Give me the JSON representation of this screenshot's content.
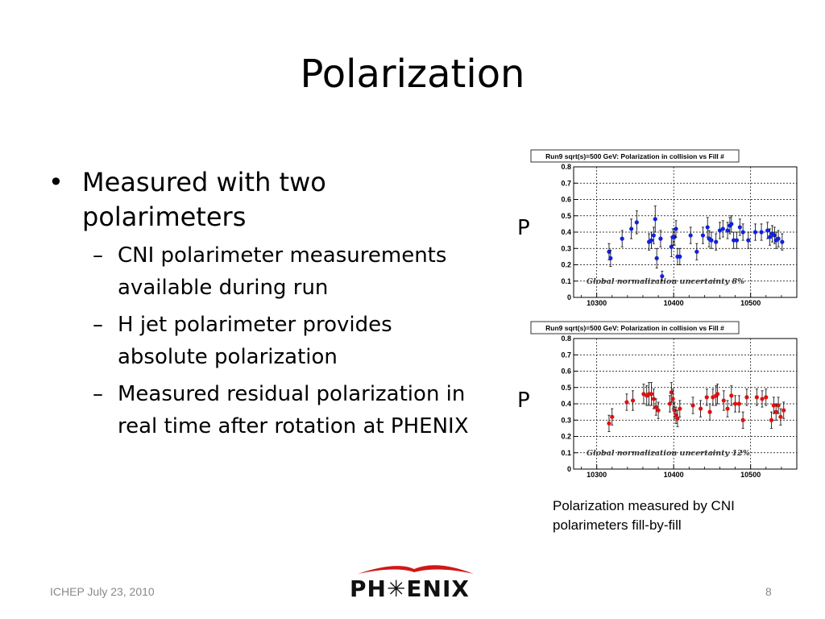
{
  "slide": {
    "title": "Polarization",
    "bullets": [
      {
        "text": "Measured with two polarimeters",
        "sub": [
          "CNI polarimeter measurements available during run",
          "H jet polarimeter provides absolute polarization",
          "Measured residual polarization in real time after rotation at PHENIX"
        ]
      }
    ],
    "bullet_glyph": "•",
    "dash_glyph": "–",
    "plot_side_labels": [
      "P",
      "P"
    ],
    "caption": "Polarization measured by CNI polarimeters fill-by-fill",
    "footer_left": "ICHEP July 23, 2010",
    "page_number": "8",
    "logo_text": "PH✳ENIX"
  },
  "chart_data": [
    {
      "type": "scatter",
      "title": "Run9 sqrt(s)=500 GeV: Polarization in collision vs Fill #",
      "annotation": "Global normalization uncertainty 8%",
      "color": "#1020e0",
      "xlim": [
        10270,
        10560
      ],
      "ylim": [
        0,
        0.8
      ],
      "xticks": [
        10300,
        10400,
        10500
      ],
      "yticks": [
        0,
        0.1,
        0.2,
        0.3,
        0.4,
        0.5,
        0.6,
        0.7,
        0.8
      ],
      "grid": true,
      "points": [
        {
          "x": 10316,
          "y": 0.28,
          "err": 0.05
        },
        {
          "x": 10318,
          "y": 0.24,
          "err": 0.05
        },
        {
          "x": 10333,
          "y": 0.36,
          "err": 0.05
        },
        {
          "x": 10345,
          "y": 0.42,
          "err": 0.06
        },
        {
          "x": 10352,
          "y": 0.46,
          "err": 0.07
        },
        {
          "x": 10368,
          "y": 0.34,
          "err": 0.05
        },
        {
          "x": 10371,
          "y": 0.35,
          "err": 0.05
        },
        {
          "x": 10374,
          "y": 0.38,
          "err": 0.05
        },
        {
          "x": 10376,
          "y": 0.48,
          "err": 0.08
        },
        {
          "x": 10378,
          "y": 0.24,
          "err": 0.06
        },
        {
          "x": 10383,
          "y": 0.36,
          "err": 0.05
        },
        {
          "x": 10385,
          "y": 0.13,
          "err": 0.03
        },
        {
          "x": 10397,
          "y": 0.31,
          "err": 0.06
        },
        {
          "x": 10399,
          "y": 0.37,
          "err": 0.05
        },
        {
          "x": 10401,
          "y": 0.37,
          "err": 0.05
        },
        {
          "x": 10403,
          "y": 0.42,
          "err": 0.05
        },
        {
          "x": 10405,
          "y": 0.25,
          "err": 0.05
        },
        {
          "x": 10408,
          "y": 0.25,
          "err": 0.05
        },
        {
          "x": 10422,
          "y": 0.38,
          "err": 0.05
        },
        {
          "x": 10430,
          "y": 0.28,
          "err": 0.05
        },
        {
          "x": 10438,
          "y": 0.38,
          "err": 0.05
        },
        {
          "x": 10444,
          "y": 0.43,
          "err": 0.06
        },
        {
          "x": 10446,
          "y": 0.36,
          "err": 0.05
        },
        {
          "x": 10449,
          "y": 0.35,
          "err": 0.05
        },
        {
          "x": 10455,
          "y": 0.34,
          "err": 0.05
        },
        {
          "x": 10460,
          "y": 0.41,
          "err": 0.05
        },
        {
          "x": 10464,
          "y": 0.42,
          "err": 0.05
        },
        {
          "x": 10470,
          "y": 0.41,
          "err": 0.05
        },
        {
          "x": 10473,
          "y": 0.44,
          "err": 0.05
        },
        {
          "x": 10475,
          "y": 0.45,
          "err": 0.05
        },
        {
          "x": 10478,
          "y": 0.35,
          "err": 0.05
        },
        {
          "x": 10482,
          "y": 0.35,
          "err": 0.05
        },
        {
          "x": 10486,
          "y": 0.43,
          "err": 0.05
        },
        {
          "x": 10490,
          "y": 0.4,
          "err": 0.05
        },
        {
          "x": 10497,
          "y": 0.35,
          "err": 0.05
        },
        {
          "x": 10506,
          "y": 0.4,
          "err": 0.05
        },
        {
          "x": 10514,
          "y": 0.4,
          "err": 0.05
        },
        {
          "x": 10522,
          "y": 0.41,
          "err": 0.05
        },
        {
          "x": 10525,
          "y": 0.37,
          "err": 0.05
        },
        {
          "x": 10528,
          "y": 0.39,
          "err": 0.05
        },
        {
          "x": 10531,
          "y": 0.38,
          "err": 0.05
        },
        {
          "x": 10533,
          "y": 0.35,
          "err": 0.05
        },
        {
          "x": 10536,
          "y": 0.36,
          "err": 0.05
        },
        {
          "x": 10541,
          "y": 0.34,
          "err": 0.05
        }
      ]
    },
    {
      "type": "scatter",
      "title": "Run9 sqrt(s)=500 GeV: Polarization in collision vs Fill #",
      "annotation": "Global normalization uncertainty 12%",
      "color": "#e01010",
      "xlim": [
        10270,
        10560
      ],
      "ylim": [
        0,
        0.8
      ],
      "xticks": [
        10300,
        10400,
        10500
      ],
      "yticks": [
        0,
        0.1,
        0.2,
        0.3,
        0.4,
        0.5,
        0.6,
        0.7,
        0.8
      ],
      "grid": true,
      "points": [
        {
          "x": 10316,
          "y": 0.28,
          "err": 0.05
        },
        {
          "x": 10320,
          "y": 0.32,
          "err": 0.05
        },
        {
          "x": 10339,
          "y": 0.41,
          "err": 0.05
        },
        {
          "x": 10347,
          "y": 0.42,
          "err": 0.06
        },
        {
          "x": 10361,
          "y": 0.46,
          "err": 0.06
        },
        {
          "x": 10365,
          "y": 0.45,
          "err": 0.06
        },
        {
          "x": 10368,
          "y": 0.46,
          "err": 0.07
        },
        {
          "x": 10371,
          "y": 0.46,
          "err": 0.07
        },
        {
          "x": 10374,
          "y": 0.43,
          "err": 0.06
        },
        {
          "x": 10377,
          "y": 0.38,
          "err": 0.05
        },
        {
          "x": 10380,
          "y": 0.36,
          "err": 0.05
        },
        {
          "x": 10395,
          "y": 0.4,
          "err": 0.05
        },
        {
          "x": 10397,
          "y": 0.47,
          "err": 0.06
        },
        {
          "x": 10399,
          "y": 0.43,
          "err": 0.06
        },
        {
          "x": 10401,
          "y": 0.36,
          "err": 0.05
        },
        {
          "x": 10403,
          "y": 0.33,
          "err": 0.05
        },
        {
          "x": 10405,
          "y": 0.31,
          "err": 0.05
        },
        {
          "x": 10408,
          "y": 0.37,
          "err": 0.05
        },
        {
          "x": 10425,
          "y": 0.39,
          "err": 0.05
        },
        {
          "x": 10435,
          "y": 0.37,
          "err": 0.05
        },
        {
          "x": 10443,
          "y": 0.44,
          "err": 0.05
        },
        {
          "x": 10447,
          "y": 0.35,
          "err": 0.05
        },
        {
          "x": 10451,
          "y": 0.44,
          "err": 0.05
        },
        {
          "x": 10455,
          "y": 0.45,
          "err": 0.06
        },
        {
          "x": 10457,
          "y": 0.46,
          "err": 0.06
        },
        {
          "x": 10465,
          "y": 0.42,
          "err": 0.06
        },
        {
          "x": 10470,
          "y": 0.37,
          "err": 0.05
        },
        {
          "x": 10475,
          "y": 0.45,
          "err": 0.06
        },
        {
          "x": 10480,
          "y": 0.4,
          "err": 0.05
        },
        {
          "x": 10485,
          "y": 0.4,
          "err": 0.05
        },
        {
          "x": 10490,
          "y": 0.3,
          "err": 0.05
        },
        {
          "x": 10495,
          "y": 0.44,
          "err": 0.05
        },
        {
          "x": 10508,
          "y": 0.44,
          "err": 0.05
        },
        {
          "x": 10515,
          "y": 0.43,
          "err": 0.05
        },
        {
          "x": 10520,
          "y": 0.44,
          "err": 0.05
        },
        {
          "x": 10527,
          "y": 0.3,
          "err": 0.05
        },
        {
          "x": 10530,
          "y": 0.39,
          "err": 0.05
        },
        {
          "x": 10533,
          "y": 0.35,
          "err": 0.05
        },
        {
          "x": 10536,
          "y": 0.39,
          "err": 0.05
        },
        {
          "x": 10539,
          "y": 0.32,
          "err": 0.05
        },
        {
          "x": 10543,
          "y": 0.36,
          "err": 0.05
        }
      ]
    }
  ]
}
